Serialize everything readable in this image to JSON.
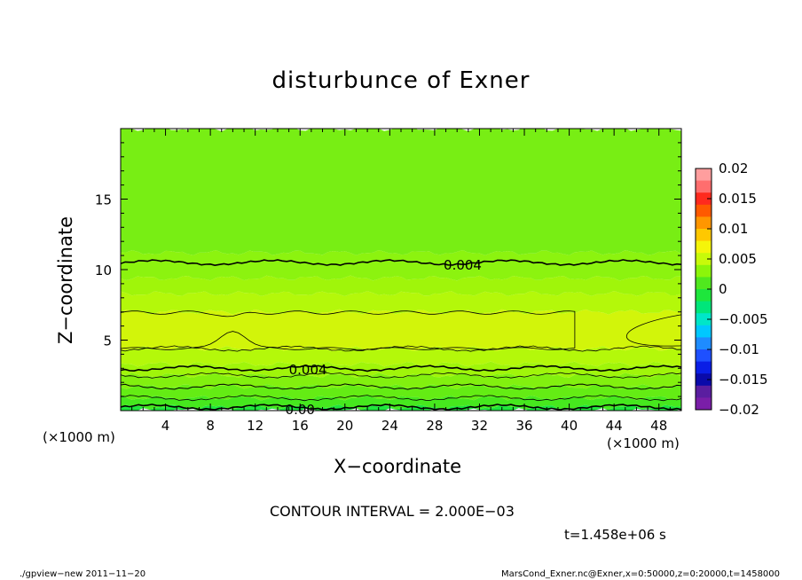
{
  "chart_data": {
    "type": "heatmap",
    "title": "disturbunce of Exner",
    "xlabel": "X−coordinate",
    "ylabel": "Z−coordinate",
    "x_unit_left": "(×1000 m)",
    "x_unit_right": "(×1000 m)",
    "xlim": [
      0,
      50
    ],
    "ylim": [
      0,
      20
    ],
    "x_ticks": [
      4,
      8,
      12,
      16,
      20,
      24,
      28,
      32,
      36,
      40,
      44,
      48
    ],
    "y_ticks": [
      5,
      10,
      15
    ],
    "colorbar": {
      "ticks": [
        "0.02",
        "0.015",
        "0.01",
        "0.005",
        "0",
        "−0.005",
        "−0.01",
        "−0.015",
        "−0.02"
      ],
      "colors": [
        "#ff9e9e",
        "#ff6e6e",
        "#ff2a1e",
        "#ff5a00",
        "#ff9600",
        "#ffc800",
        "#f5f50a",
        "#c8fa0a",
        "#8cf50a",
        "#50e81e",
        "#1ee63c",
        "#00e67a",
        "#00e6c8",
        "#00c8ff",
        "#1e8cff",
        "#1e50ff",
        "#0a1ee6",
        "#0a0aaa",
        "#5a1ea0",
        "#7a1ea8"
      ]
    },
    "bands": [
      {
        "z_bottom": 0.0,
        "z_top": 0.25,
        "color": "#1ee63c"
      },
      {
        "z_bottom": 0.25,
        "z_top": 0.9,
        "color": "#46e81e"
      },
      {
        "z_bottom": 0.9,
        "z_top": 1.7,
        "color": "#64ec14"
      },
      {
        "z_bottom": 1.7,
        "z_top": 2.5,
        "color": "#82f00f"
      },
      {
        "z_bottom": 2.5,
        "z_top": 3.3,
        "color": "#a0f50a"
      },
      {
        "z_bottom": 3.3,
        "z_top": 4.4,
        "color": "#b4f80a"
      },
      {
        "z_bottom": 4.4,
        "z_top": 7.0,
        "color": "#d2f50a"
      },
      {
        "z_bottom": 7.0,
        "z_top": 8.3,
        "color": "#b4f80a"
      },
      {
        "z_bottom": 8.3,
        "z_top": 9.4,
        "color": "#a0f50a"
      },
      {
        "z_bottom": 9.4,
        "z_top": 11.2,
        "color": "#8cf30f"
      },
      {
        "z_bottom": 11.2,
        "z_top": 20.0,
        "color": "#78ee14"
      }
    ],
    "contour_labels": [
      {
        "text": "0.004",
        "x": 30.5,
        "z": 10.3
      },
      {
        "text": "0.004",
        "x": 16.7,
        "z": 2.9
      },
      {
        "text": "0.00",
        "x": 16.0,
        "z": 0.05
      }
    ],
    "contour_interval": "CONTOUR INTERVAL = 2.000E−03",
    "time": "t=1.458e+06 s"
  },
  "footer": {
    "left": "./gpview−new   2011−11−20",
    "right": "MarsCond_Exner.nc@Exner,x=0:50000,z=0:20000,t=1458000"
  }
}
